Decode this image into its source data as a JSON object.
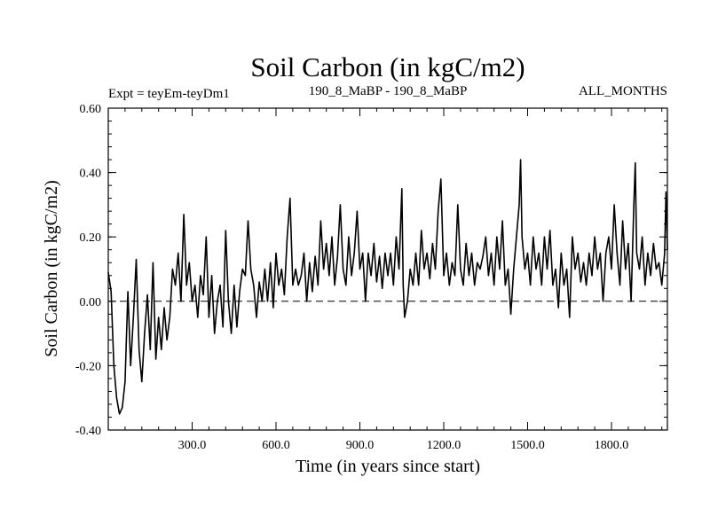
{
  "chart_data": {
    "type": "line",
    "title": "Soil Carbon (in kgC/m2)",
    "subtitle_left": "Expt = teyEm-teyDm1",
    "subtitle_center": "190_8_MaBP - 190_8_MaBP",
    "subtitle_right": "ALL_MONTHS",
    "xlabel": "Time (in years since start)",
    "ylabel": "Soil Carbon (in kgC/m2)",
    "xlim": [
      0,
      2000
    ],
    "ylim": [
      -0.4,
      0.6
    ],
    "x_ticks": [
      300,
      600,
      900,
      1200,
      1500,
      1800
    ],
    "x_tick_labels": [
      "300.0",
      "600.0",
      "900.0",
      "1200.0",
      "1500.0",
      "1800.0"
    ],
    "y_ticks": [
      -0.4,
      -0.2,
      0.0,
      0.2,
      0.4,
      0.6
    ],
    "y_tick_labels": [
      "-0.40",
      "-0.20",
      "0.00",
      "0.20",
      "0.40",
      "0.60"
    ],
    "reference_line": {
      "y": 0.0,
      "style": "dashed"
    },
    "series": [
      {
        "name": "Soil Carbon",
        "color": "#000000",
        "points": [
          [
            0,
            0.09
          ],
          [
            10,
            0.03
          ],
          [
            20,
            -0.2
          ],
          [
            30,
            -0.3
          ],
          [
            40,
            -0.35
          ],
          [
            50,
            -0.33
          ],
          [
            60,
            -0.25
          ],
          [
            70,
            0.03
          ],
          [
            80,
            -0.2
          ],
          [
            90,
            -0.05
          ],
          [
            100,
            0.13
          ],
          [
            110,
            -0.15
          ],
          [
            120,
            -0.25
          ],
          [
            130,
            -0.1
          ],
          [
            140,
            0.02
          ],
          [
            150,
            -0.15
          ],
          [
            160,
            0.12
          ],
          [
            170,
            -0.18
          ],
          [
            180,
            -0.05
          ],
          [
            190,
            -0.15
          ],
          [
            200,
            -0.02
          ],
          [
            210,
            -0.12
          ],
          [
            220,
            -0.05
          ],
          [
            230,
            0.1
          ],
          [
            240,
            0.05
          ],
          [
            250,
            0.15
          ],
          [
            260,
            0.0
          ],
          [
            270,
            0.27
          ],
          [
            280,
            0.05
          ],
          [
            290,
            0.12
          ],
          [
            300,
            0.0
          ],
          [
            310,
            0.05
          ],
          [
            320,
            -0.05
          ],
          [
            330,
            0.08
          ],
          [
            340,
            0.02
          ],
          [
            350,
            0.2
          ],
          [
            360,
            -0.05
          ],
          [
            370,
            0.08
          ],
          [
            380,
            -0.1
          ],
          [
            390,
            0.0
          ],
          [
            400,
            0.05
          ],
          [
            410,
            -0.08
          ],
          [
            420,
            0.22
          ],
          [
            430,
            0.0
          ],
          [
            440,
            -0.1
          ],
          [
            450,
            0.05
          ],
          [
            460,
            -0.08
          ],
          [
            470,
            0.03
          ],
          [
            480,
            0.1
          ],
          [
            490,
            0.08
          ],
          [
            500,
            0.25
          ],
          [
            510,
            0.1
          ],
          [
            520,
            0.05
          ],
          [
            530,
            -0.05
          ],
          [
            540,
            0.06
          ],
          [
            550,
            0.0
          ],
          [
            560,
            0.1
          ],
          [
            570,
            0.0
          ],
          [
            580,
            0.12
          ],
          [
            590,
            -0.02
          ],
          [
            600,
            0.15
          ],
          [
            610,
            0.05
          ],
          [
            620,
            0.1
          ],
          [
            630,
            0.02
          ],
          [
            640,
            0.2
          ],
          [
            650,
            0.32
          ],
          [
            660,
            0.05
          ],
          [
            670,
            0.1
          ],
          [
            680,
            0.05
          ],
          [
            690,
            0.08
          ],
          [
            700,
            0.15
          ],
          [
            710,
            0.0
          ],
          [
            720,
            0.12
          ],
          [
            730,
            0.03
          ],
          [
            740,
            0.14
          ],
          [
            750,
            0.05
          ],
          [
            760,
            0.25
          ],
          [
            770,
            0.1
          ],
          [
            780,
            0.18
          ],
          [
            790,
            0.08
          ],
          [
            800,
            0.2
          ],
          [
            810,
            0.05
          ],
          [
            820,
            0.14
          ],
          [
            830,
            0.3
          ],
          [
            840,
            0.1
          ],
          [
            850,
            0.05
          ],
          [
            860,
            0.2
          ],
          [
            870,
            0.08
          ],
          [
            880,
            0.15
          ],
          [
            890,
            0.28
          ],
          [
            900,
            0.1
          ],
          [
            910,
            0.15
          ],
          [
            920,
            0.0
          ],
          [
            930,
            0.15
          ],
          [
            940,
            0.08
          ],
          [
            950,
            0.18
          ],
          [
            960,
            0.06
          ],
          [
            970,
            0.14
          ],
          [
            980,
            0.04
          ],
          [
            990,
            0.15
          ],
          [
            1000,
            0.08
          ],
          [
            1010,
            0.15
          ],
          [
            1020,
            0.05
          ],
          [
            1030,
            0.2
          ],
          [
            1040,
            0.1
          ],
          [
            1050,
            0.35
          ],
          [
            1055,
            0.05
          ],
          [
            1060,
            -0.05
          ],
          [
            1070,
            0.0
          ],
          [
            1080,
            0.1
          ],
          [
            1090,
            0.05
          ],
          [
            1100,
            0.15
          ],
          [
            1110,
            0.05
          ],
          [
            1120,
            0.22
          ],
          [
            1130,
            0.1
          ],
          [
            1140,
            0.15
          ],
          [
            1150,
            0.07
          ],
          [
            1160,
            0.18
          ],
          [
            1170,
            0.1
          ],
          [
            1180,
            0.28
          ],
          [
            1190,
            0.38
          ],
          [
            1200,
            0.08
          ],
          [
            1210,
            0.15
          ],
          [
            1220,
            0.05
          ],
          [
            1230,
            0.12
          ],
          [
            1240,
            0.08
          ],
          [
            1250,
            0.3
          ],
          [
            1260,
            0.1
          ],
          [
            1270,
            0.05
          ],
          [
            1280,
            0.18
          ],
          [
            1290,
            0.08
          ],
          [
            1300,
            0.15
          ],
          [
            1310,
            0.05
          ],
          [
            1320,
            0.12
          ],
          [
            1330,
            0.1
          ],
          [
            1340,
            0.14
          ],
          [
            1350,
            0.2
          ],
          [
            1360,
            0.08
          ],
          [
            1370,
            0.15
          ],
          [
            1380,
            0.05
          ],
          [
            1390,
            0.2
          ],
          [
            1400,
            0.1
          ],
          [
            1410,
            0.25
          ],
          [
            1420,
            0.05
          ],
          [
            1430,
            0.1
          ],
          [
            1440,
            -0.04
          ],
          [
            1450,
            0.1
          ],
          [
            1460,
            0.2
          ],
          [
            1470,
            0.3
          ],
          [
            1475,
            0.44
          ],
          [
            1480,
            0.2
          ],
          [
            1490,
            0.1
          ],
          [
            1500,
            0.15
          ],
          [
            1510,
            0.05
          ],
          [
            1520,
            0.2
          ],
          [
            1530,
            0.1
          ],
          [
            1540,
            0.15
          ],
          [
            1550,
            0.05
          ],
          [
            1560,
            0.2
          ],
          [
            1570,
            0.1
          ],
          [
            1580,
            0.22
          ],
          [
            1590,
            0.05
          ],
          [
            1600,
            0.1
          ],
          [
            1610,
            -0.02
          ],
          [
            1620,
            0.15
          ],
          [
            1630,
            0.05
          ],
          [
            1640,
            0.1
          ],
          [
            1650,
            -0.05
          ],
          [
            1660,
            0.2
          ],
          [
            1670,
            0.1
          ],
          [
            1680,
            0.15
          ],
          [
            1690,
            0.06
          ],
          [
            1700,
            0.12
          ],
          [
            1710,
            0.05
          ],
          [
            1720,
            0.15
          ],
          [
            1730,
            0.08
          ],
          [
            1740,
            0.2
          ],
          [
            1750,
            0.1
          ],
          [
            1760,
            0.15
          ],
          [
            1770,
            0.0
          ],
          [
            1780,
            0.15
          ],
          [
            1790,
            0.2
          ],
          [
            1800,
            0.1
          ],
          [
            1810,
            0.3
          ],
          [
            1820,
            0.15
          ],
          [
            1830,
            0.05
          ],
          [
            1840,
            0.25
          ],
          [
            1850,
            0.1
          ],
          [
            1860,
            0.18
          ],
          [
            1870,
            0.0
          ],
          [
            1880,
            0.3
          ],
          [
            1885,
            0.43
          ],
          [
            1890,
            0.15
          ],
          [
            1900,
            0.1
          ],
          [
            1910,
            0.2
          ],
          [
            1920,
            0.05
          ],
          [
            1930,
            0.15
          ],
          [
            1940,
            0.08
          ],
          [
            1950,
            0.18
          ],
          [
            1960,
            0.1
          ],
          [
            1970,
            0.12
          ],
          [
            1980,
            0.05
          ],
          [
            1990,
            0.15
          ],
          [
            1995,
            0.34
          ],
          [
            2000,
            0.16
          ]
        ]
      }
    ]
  }
}
